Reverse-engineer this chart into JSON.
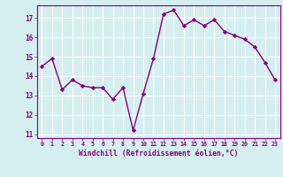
{
  "x": [
    0,
    1,
    2,
    3,
    4,
    5,
    6,
    7,
    8,
    9,
    10,
    11,
    12,
    13,
    14,
    15,
    16,
    17,
    18,
    19,
    20,
    21,
    22,
    23
  ],
  "y": [
    14.5,
    14.9,
    13.3,
    13.8,
    13.5,
    13.4,
    13.4,
    12.8,
    13.4,
    11.2,
    13.1,
    14.9,
    17.2,
    17.4,
    16.6,
    16.9,
    16.6,
    16.9,
    16.3,
    16.1,
    15.9,
    15.5,
    14.7,
    13.8
  ],
  "line_color": "#800080",
  "marker": "D",
  "marker_size": 2.2,
  "linewidth": 1.0,
  "bg_color": "#d5eef0",
  "grid_color": "#ffffff",
  "xlabel": "Windchill (Refroidissement éolien,°C)",
  "xlabel_color": "#800080",
  "tick_color": "#800080",
  "spine_color": "#800080",
  "xlim": [
    -0.5,
    23.5
  ],
  "ylim": [
    10.8,
    17.65
  ],
  "yticks": [
    11,
    12,
    13,
    14,
    15,
    16,
    17
  ],
  "xtick_labels": [
    "0",
    "1",
    "2",
    "3",
    "4",
    "5",
    "6",
    "7",
    "8",
    "9",
    "10",
    "11",
    "12",
    "13",
    "14",
    "15",
    "16",
    "17",
    "18",
    "19",
    "20",
    "21",
    "22",
    "23"
  ]
}
